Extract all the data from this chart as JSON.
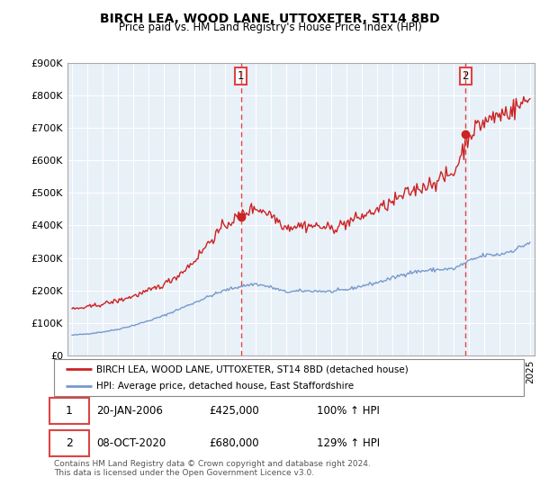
{
  "title": "BIRCH LEA, WOOD LANE, UTTOXETER, ST14 8BD",
  "subtitle": "Price paid vs. HM Land Registry's House Price Index (HPI)",
  "legend_line1": "BIRCH LEA, WOOD LANE, UTTOXETER, ST14 8BD (detached house)",
  "legend_line2": "HPI: Average price, detached house, East Staffordshire",
  "annotation1_date": "20-JAN-2006",
  "annotation1_price": "£425,000",
  "annotation1_hpi": "100% ↑ HPI",
  "annotation2_date": "08-OCT-2020",
  "annotation2_price": "£680,000",
  "annotation2_hpi": "129% ↑ HPI",
  "footer": "Contains HM Land Registry data © Crown copyright and database right 2024.\nThis data is licensed under the Open Government Licence v3.0.",
  "red_color": "#cc2222",
  "blue_color": "#7799cc",
  "dashed_color": "#dd4444",
  "chart_bg": "#e8f0f8",
  "background_color": "#ffffff",
  "ylim": [
    0,
    900000
  ],
  "yticks": [
    0,
    100000,
    200000,
    300000,
    400000,
    500000,
    600000,
    700000,
    800000,
    900000
  ],
  "ytick_labels": [
    "£0",
    "£100K",
    "£200K",
    "£300K",
    "£400K",
    "£500K",
    "£600K",
    "£700K",
    "£800K",
    "£900K"
  ],
  "sale1_x": 2006.05,
  "sale1_y": 425000,
  "sale2_x": 2020.78,
  "sale2_y": 680000,
  "vline1_x": 2006.05,
  "vline2_x": 2020.78,
  "xlim_left": 1994.7,
  "xlim_right": 2025.3
}
